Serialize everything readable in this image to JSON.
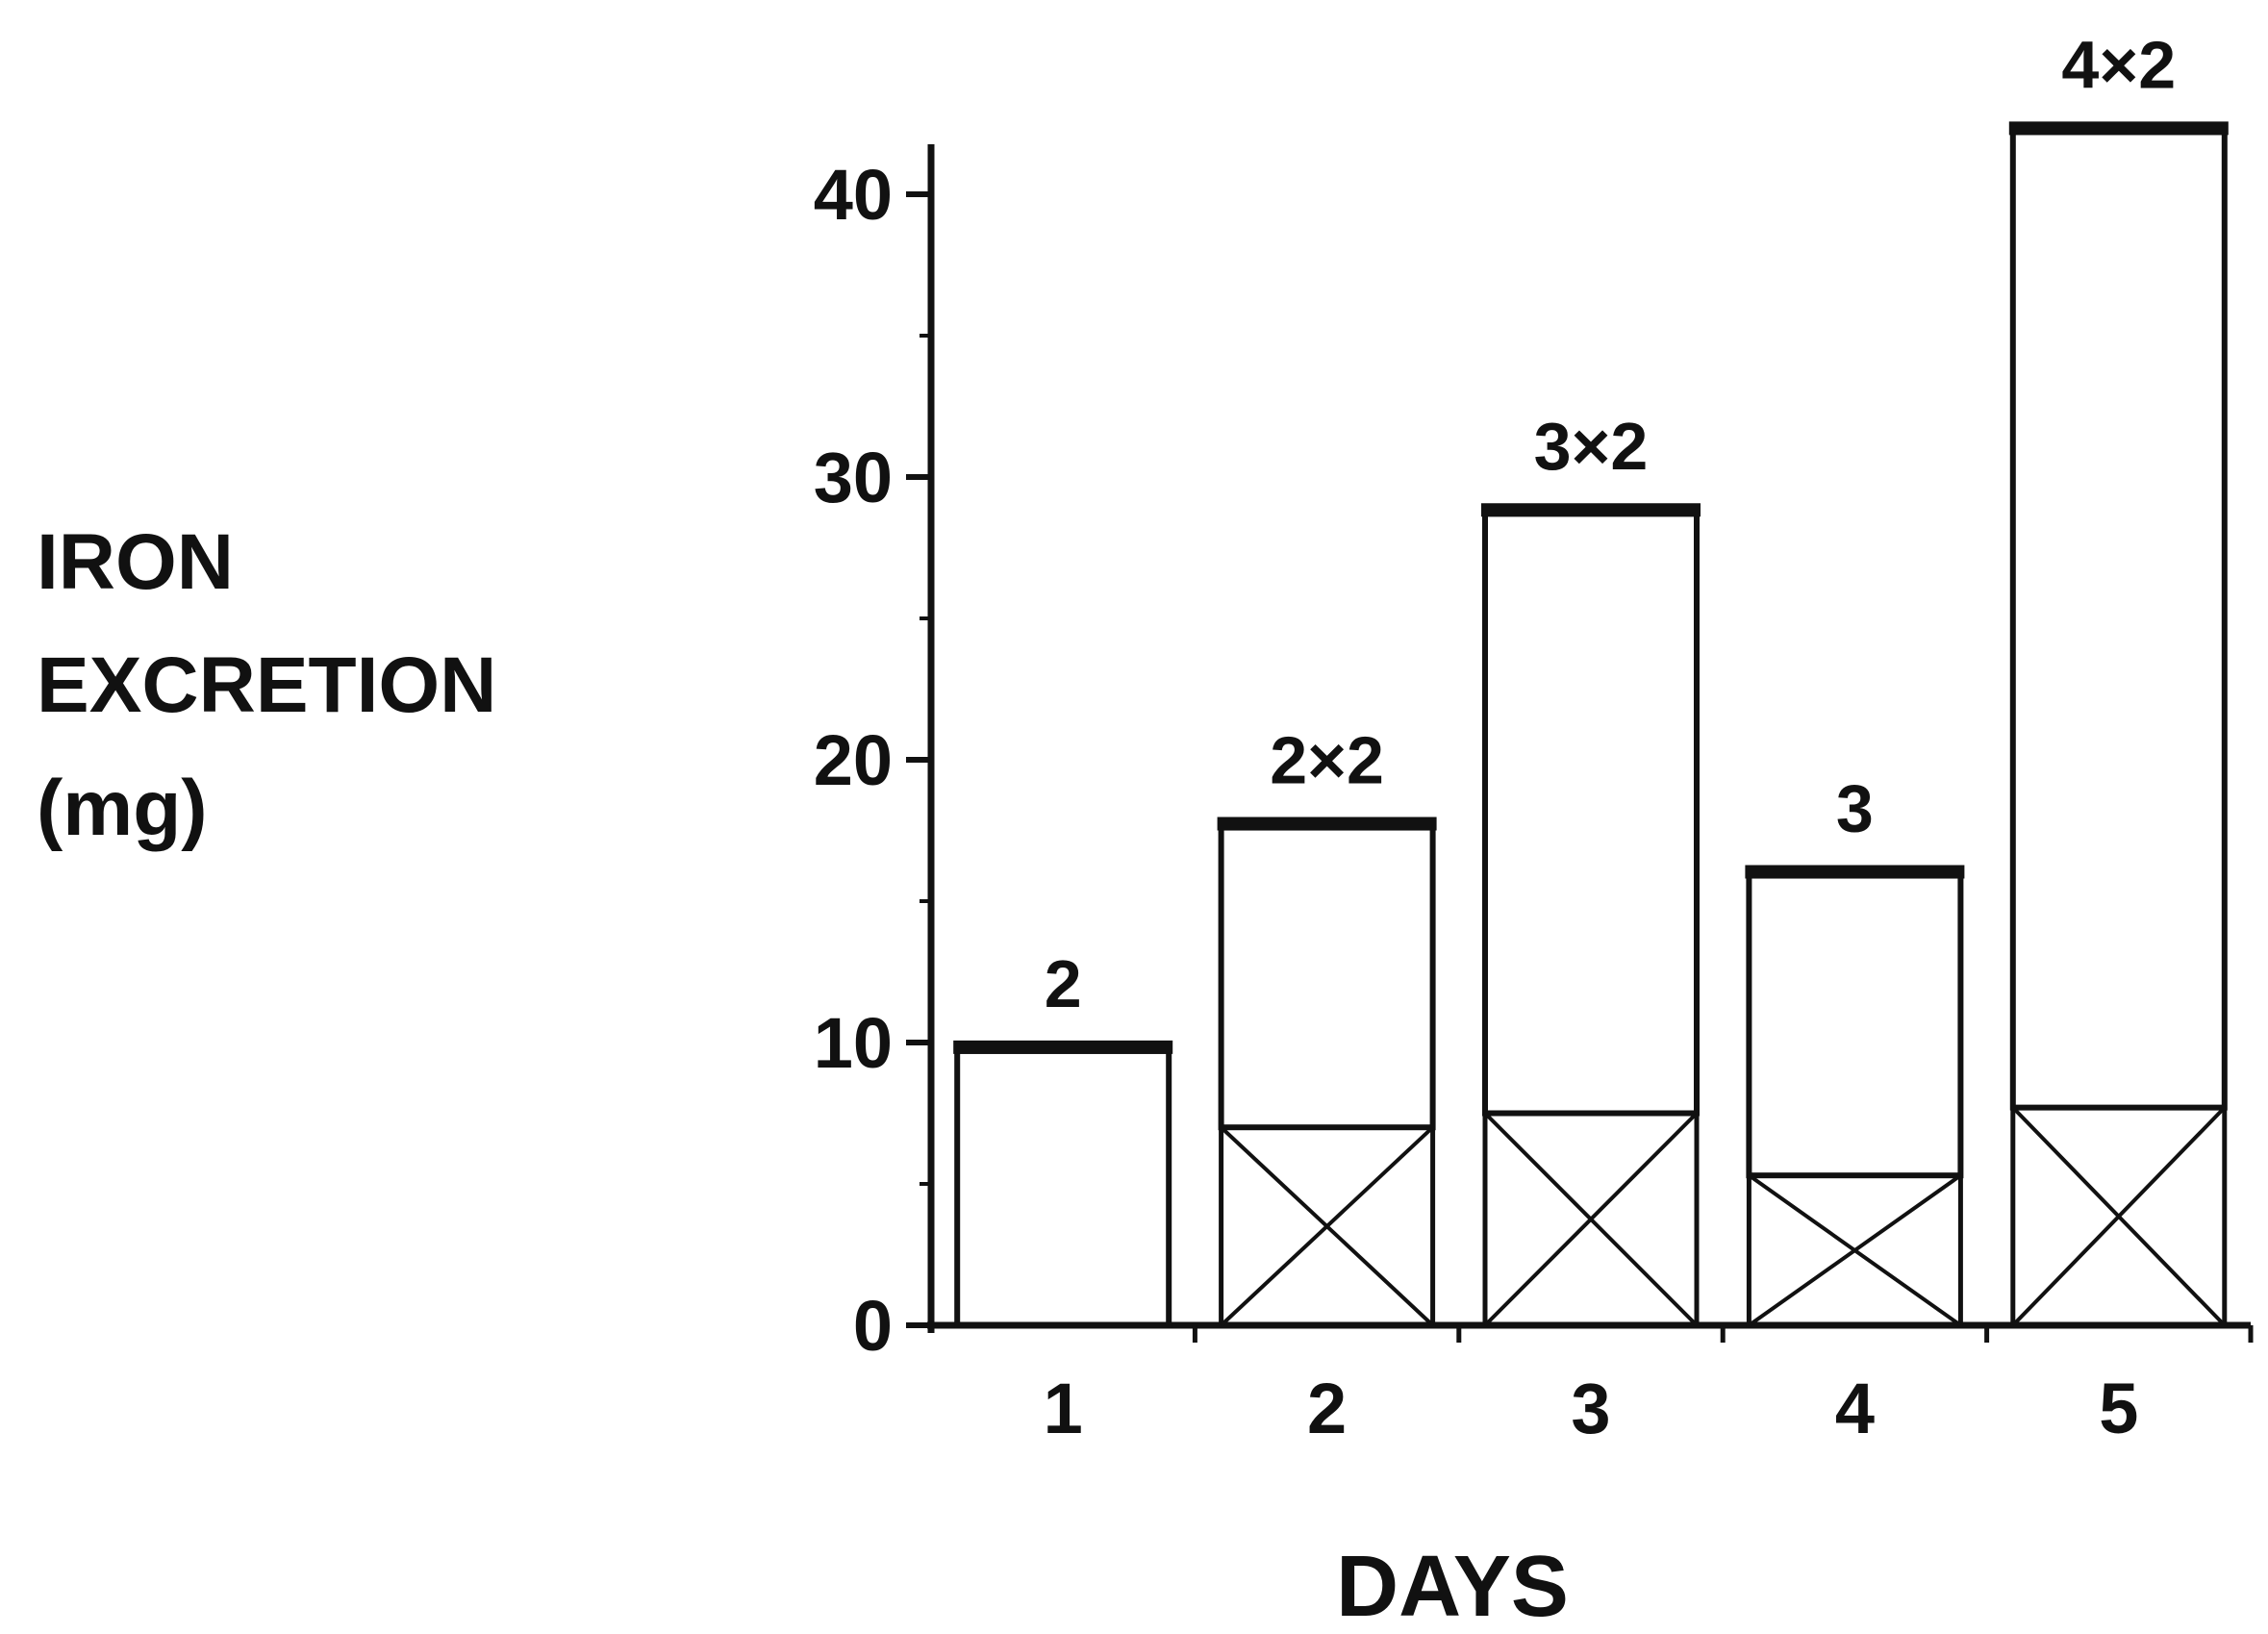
{
  "chart_data": {
    "type": "bar",
    "title": "",
    "ylabel_lines": [
      "IRON",
      "EXCRETION",
      "(mg)"
    ],
    "xlabel": "DAYS",
    "categories": [
      "1",
      "2",
      "3",
      "4",
      "5"
    ],
    "series": [
      {
        "values": [
          0,
          7,
          7.5,
          5.3,
          7.7
        ]
      },
      {
        "values": [
          9.7,
          10.6,
          21.2,
          10.6,
          34.5
        ]
      }
    ],
    "totals": [
      9.7,
      17.6,
      28.7,
      15.9,
      42.2
    ],
    "bar_labels": [
      "2",
      "2×2",
      "3×2",
      "3",
      "4×2"
    ],
    "yticks": [
      "0",
      "10",
      "20",
      "30",
      "40"
    ],
    "ylim": [
      0,
      42
    ],
    "grid": false,
    "legend": "none"
  }
}
